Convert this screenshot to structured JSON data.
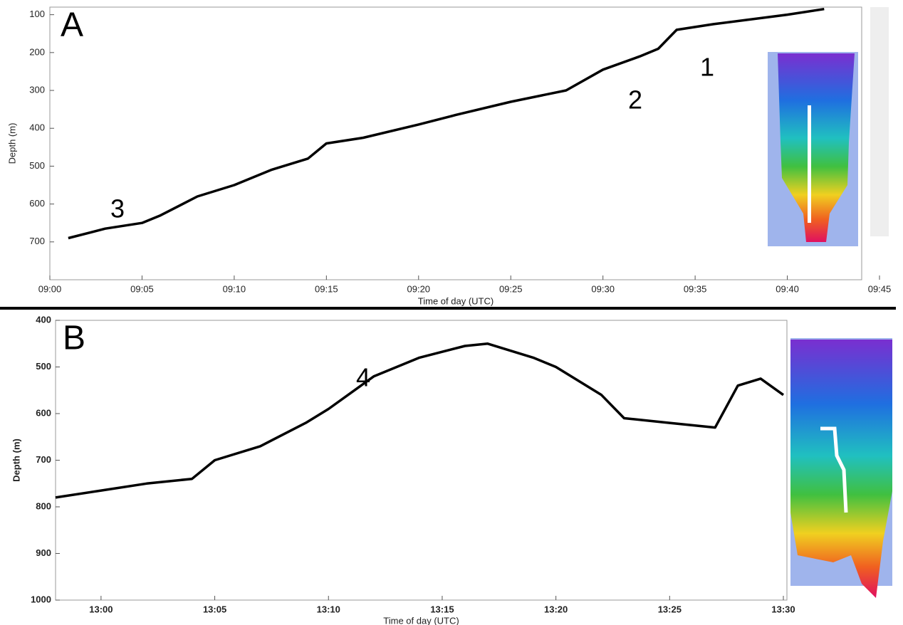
{
  "chart_data": [
    {
      "type": "line",
      "panel_label": "A",
      "annotations": [
        "1",
        "2",
        "3"
      ],
      "x_label": "Time of day (UTC)",
      "y_label": "Depth (m)",
      "invert_y": true,
      "color": "#000000",
      "xlim": [
        "09:00",
        "09:45"
      ],
      "ylim": [
        80,
        800
      ],
      "xticks": [
        "09:00",
        "09:05",
        "09:10",
        "09:15",
        "09:20",
        "09:25",
        "09:30",
        "09:35",
        "09:40",
        "09:45"
      ],
      "yticks": [
        100,
        200,
        300,
        400,
        500,
        600,
        700
      ],
      "x": [
        "09:01",
        "09:03",
        "09:05",
        "09:06",
        "09:08",
        "09:10",
        "09:12",
        "09:14",
        "09:15",
        "09:17",
        "09:20",
        "09:22",
        "09:25",
        "09:28",
        "09:30",
        "09:32",
        "09:33",
        "09:34",
        "09:36",
        "09:40",
        "09:42"
      ],
      "values": [
        690,
        665,
        650,
        630,
        580,
        550,
        510,
        480,
        440,
        425,
        390,
        365,
        330,
        300,
        245,
        210,
        190,
        140,
        125,
        100,
        85
      ]
    },
    {
      "type": "line",
      "panel_label": "B",
      "annotations": [
        "4"
      ],
      "x_label": "Time of day (UTC)",
      "y_label": "Depth (m)",
      "invert_y": true,
      "color": "#000000",
      "xlim": [
        "12:58",
        "13:30"
      ],
      "ylim": [
        400,
        1000
      ],
      "xticks": [
        "13:00",
        "13:05",
        "13:10",
        "13:15",
        "13:20",
        "13:25",
        "13:30"
      ],
      "yticks": [
        400,
        500,
        600,
        700,
        800,
        900,
        1000
      ],
      "x": [
        "12:58",
        "13:00",
        "13:02",
        "13:04",
        "13:05",
        "13:07",
        "13:09",
        "13:10",
        "13:12",
        "13:14",
        "13:16",
        "13:17",
        "13:19",
        "13:20",
        "13:22",
        "13:23",
        "13:25",
        "13:27",
        "13:28",
        "13:29",
        "13:30"
      ],
      "values": [
        780,
        765,
        750,
        740,
        700,
        670,
        620,
        590,
        520,
        480,
        455,
        450,
        480,
        500,
        560,
        610,
        620,
        630,
        540,
        525,
        560
      ]
    }
  ]
}
